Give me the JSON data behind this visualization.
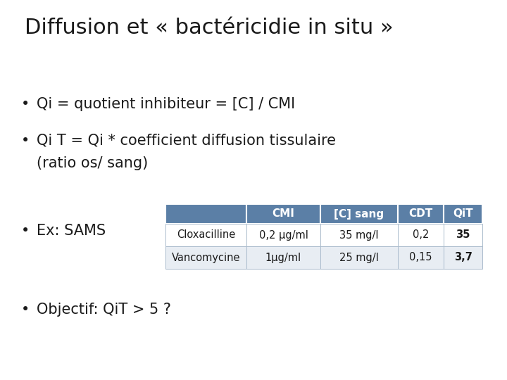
{
  "title": "Diffusion et « bactéricidie in situ »",
  "bullet1": "Qi = quotient inhibiteur = [C] / CMI",
  "bullet2a": "Qi T = Qi * coefficient diffusion tissulaire",
  "bullet2b": "(ratio os/ sang)",
  "bullet3": "Ex: SAMS",
  "bullet4": "Objectif: QiT > 5 ?",
  "table_header": [
    "",
    "CMI",
    "[C] sang",
    "CDT",
    "QiT"
  ],
  "table_row1": [
    "Cloxacilline",
    "0,2 μg/ml",
    "35 mg/l",
    "0,2",
    "35"
  ],
  "table_row2": [
    "Vancomycine",
    "1μg/ml",
    "25 mg/l",
    "0,15",
    "3,7"
  ],
  "header_color": "#5B7FA6",
  "header_text_color": "#FFFFFF",
  "row1_color": "#FFFFFF",
  "row2_color": "#E8EDF3",
  "bg_color": "#FFFFFF",
  "title_fontsize": 22,
  "bullet_fontsize": 15,
  "table_header_fontsize": 11,
  "table_data_fontsize": 10.5
}
